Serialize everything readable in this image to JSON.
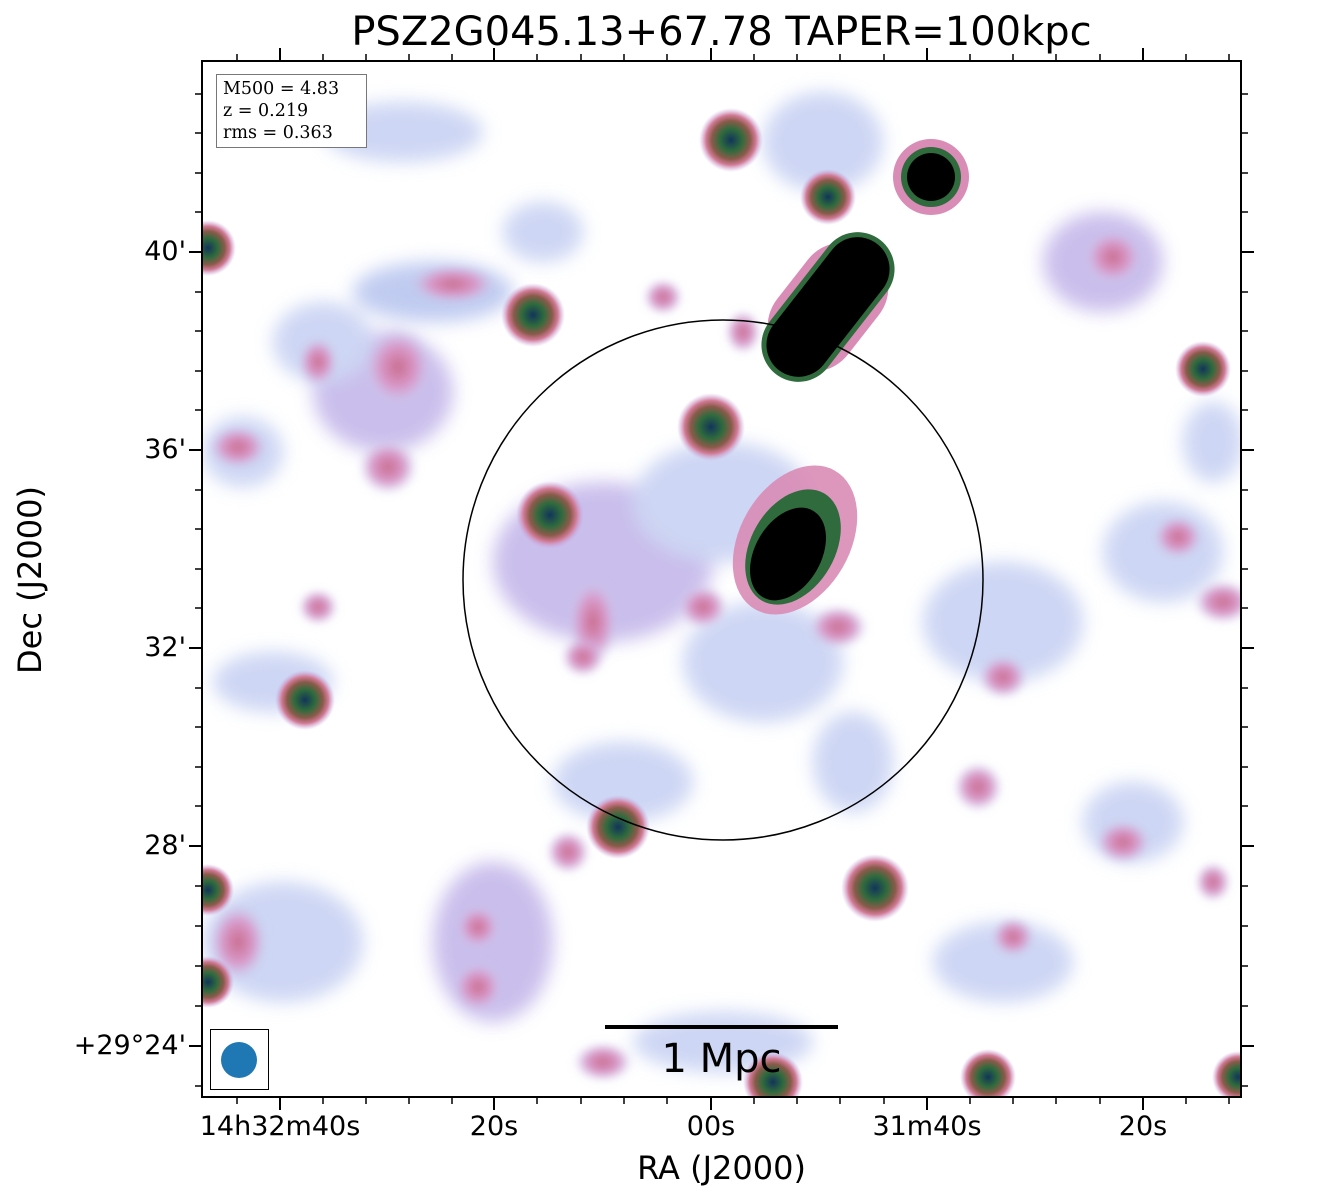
{
  "figure": {
    "title": "PSZ2G045.13+67.78 TAPER=100kpc",
    "xlabel": "RA (J2000)",
    "ylabel": "Dec (J2000)"
  },
  "info_box": {
    "line1": "M500 = 4.83",
    "line2": "z = 0.219",
    "line3": "rms = 0.363"
  },
  "scale_bar": {
    "label": "1 Mpc"
  },
  "axes": {
    "y_ticks": [
      "40'",
      "36'",
      "32'",
      "28'",
      "+29°24'"
    ],
    "x_ticks": [
      "14h32m40s",
      "20s",
      "00s",
      "31m40s",
      "20s"
    ]
  },
  "colors": {
    "beam": "#1f77b4",
    "faint": "#b9c6ef",
    "mid": "#cf8fc7",
    "bright": "#2f6b3c",
    "saturated": "#000000"
  }
}
